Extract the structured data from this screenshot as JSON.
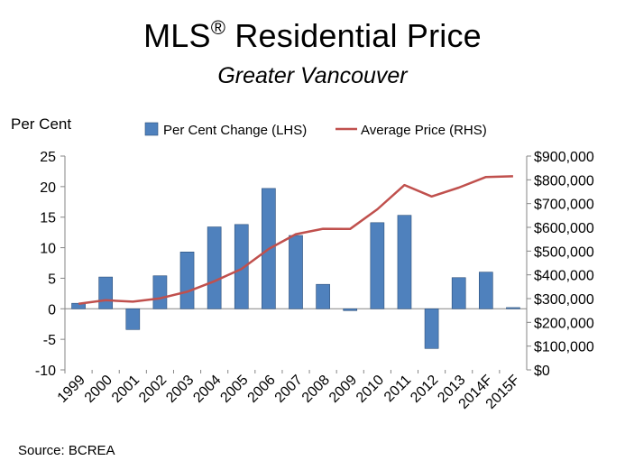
{
  "header": {
    "title": "MLS",
    "title_mark": "®",
    "title_rest": " Residential Price",
    "subtitle": "Greater Vancouver"
  },
  "footer": {
    "source": "Source: BCREA"
  },
  "chart_data": {
    "type": "bar+line",
    "left_axis_label": "Per Cent",
    "categories": [
      "1999",
      "2000",
      "2001",
      "2002",
      "2003",
      "2004",
      "2005",
      "2006",
      "2007",
      "2008",
      "2009",
      "2010",
      "2011",
      "2012",
      "2013",
      "2014F",
      "2015F"
    ],
    "series": [
      {
        "name": "Per Cent Change (LHS)",
        "type": "bar",
        "axis": "left",
        "color": "#4f81bd",
        "values": [
          0.9,
          5.2,
          -3.4,
          5.4,
          9.3,
          13.4,
          13.8,
          19.7,
          12.0,
          4.0,
          -0.3,
          14.1,
          15.3,
          -6.5,
          5.1,
          6.0,
          0.2
        ]
      },
      {
        "name": "Average Price (RHS)",
        "type": "line",
        "axis": "right",
        "color": "#c0504d",
        "values": [
          278000,
          293000,
          287000,
          301000,
          329000,
          373000,
          425000,
          509000,
          571000,
          594000,
          593000,
          676000,
          778000,
          730000,
          767000,
          812000,
          815000
        ]
      }
    ],
    "left_axis": {
      "min": -10,
      "max": 25,
      "step": 5,
      "ticks": [
        "25",
        "20",
        "15",
        "10",
        "5",
        "0",
        "-5",
        "-10"
      ]
    },
    "right_axis": {
      "min": 0,
      "max": 900000,
      "step": 100000,
      "ticks": [
        "$900,000",
        "$800,000",
        "$700,000",
        "$600,000",
        "$500,000",
        "$400,000",
        "$300,000",
        "$200,000",
        "$100,000",
        "$0"
      ]
    },
    "legend": "top",
    "grid": false
  }
}
